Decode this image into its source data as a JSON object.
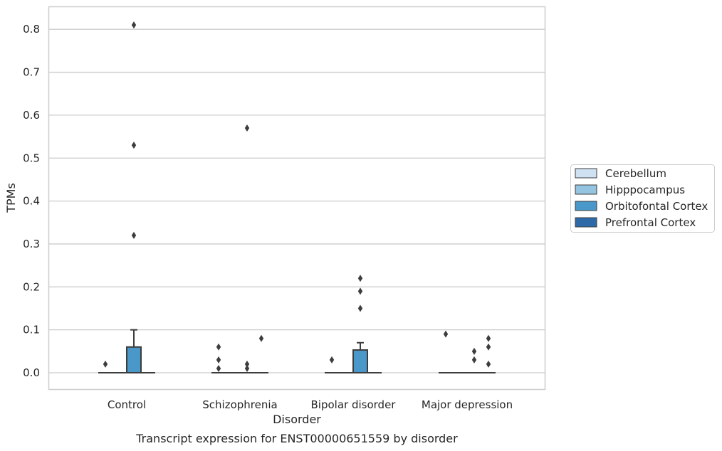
{
  "chart_data": {
    "type": "box",
    "xlabel": "Disorder",
    "ylabel": "TPMs",
    "caption": "Transcript expression for ENST00000651559 by disorder",
    "ylim": [
      -0.04,
      0.85
    ],
    "yticks": [
      "0.0",
      "0.1",
      "0.2",
      "0.3",
      "0.4",
      "0.5",
      "0.6",
      "0.7",
      "0.8"
    ],
    "grid": "horizontal",
    "legend_position": "right",
    "categories": [
      "Control",
      "Schizophrenia",
      "Bipolar disorder",
      "Major depression"
    ],
    "series": [
      {
        "name": "Cerebellum",
        "color": "#d0e1f2",
        "boxes": [
          {
            "q1": 0,
            "median": 0,
            "q3": 0,
            "whisker_low": 0,
            "whisker_high": 0,
            "outliers": [
              0.02
            ]
          },
          {
            "q1": 0,
            "median": 0,
            "q3": 0,
            "whisker_low": 0,
            "whisker_high": 0,
            "outliers": [
              0.01,
              0.03,
              0.06
            ]
          },
          {
            "q1": 0,
            "median": 0,
            "q3": 0,
            "whisker_low": 0,
            "whisker_high": 0,
            "outliers": [
              0.03
            ]
          },
          {
            "q1": 0,
            "median": 0,
            "q3": 0,
            "whisker_low": 0,
            "whisker_high": 0,
            "outliers": [
              0.09
            ]
          }
        ]
      },
      {
        "name": "Hipppocampus",
        "color": "#94c4df",
        "boxes": [
          {
            "q1": 0,
            "median": 0,
            "q3": 0,
            "whisker_low": 0,
            "whisker_high": 0,
            "outliers": []
          },
          {
            "q1": 0,
            "median": 0,
            "q3": 0,
            "whisker_low": 0,
            "whisker_high": 0,
            "outliers": []
          },
          {
            "q1": 0,
            "median": 0,
            "q3": 0,
            "whisker_low": 0,
            "whisker_high": 0,
            "outliers": []
          },
          {
            "q1": 0,
            "median": 0,
            "q3": 0,
            "whisker_low": 0,
            "whisker_high": 0,
            "outliers": []
          }
        ]
      },
      {
        "name": "Orbitofontal Cortex",
        "color": "#4a98c9",
        "boxes": [
          {
            "q1": 0,
            "median": 0,
            "q3": 0.06,
            "whisker_low": 0,
            "whisker_high": 0.1,
            "outliers": [
              0.32,
              0.53,
              0.81
            ]
          },
          {
            "q1": 0,
            "median": 0,
            "q3": 0,
            "whisker_low": 0,
            "whisker_high": 0,
            "outliers": [
              0.01,
              0.02,
              0.57
            ]
          },
          {
            "q1": 0,
            "median": 0,
            "q3": 0.053,
            "whisker_low": 0,
            "whisker_high": 0.07,
            "outliers": [
              0.15,
              0.19,
              0.22
            ]
          },
          {
            "q1": 0,
            "median": 0,
            "q3": 0,
            "whisker_low": 0,
            "whisker_high": 0,
            "outliers": [
              0.03,
              0.05
            ]
          }
        ]
      },
      {
        "name": "Prefrontal Cortex",
        "color": "#2e6aa8",
        "boxes": [
          {
            "q1": 0,
            "median": 0,
            "q3": 0,
            "whisker_low": 0,
            "whisker_high": 0,
            "outliers": []
          },
          {
            "q1": 0,
            "median": 0,
            "q3": 0,
            "whisker_low": 0,
            "whisker_high": 0,
            "outliers": [
              0.08
            ]
          },
          {
            "q1": 0,
            "median": 0,
            "q3": 0,
            "whisker_low": 0,
            "whisker_high": 0,
            "outliers": []
          },
          {
            "q1": 0,
            "median": 0,
            "q3": 0,
            "whisker_low": 0,
            "whisker_high": 0,
            "outliers": [
              0.02,
              0.06,
              0.08
            ]
          }
        ]
      }
    ]
  }
}
